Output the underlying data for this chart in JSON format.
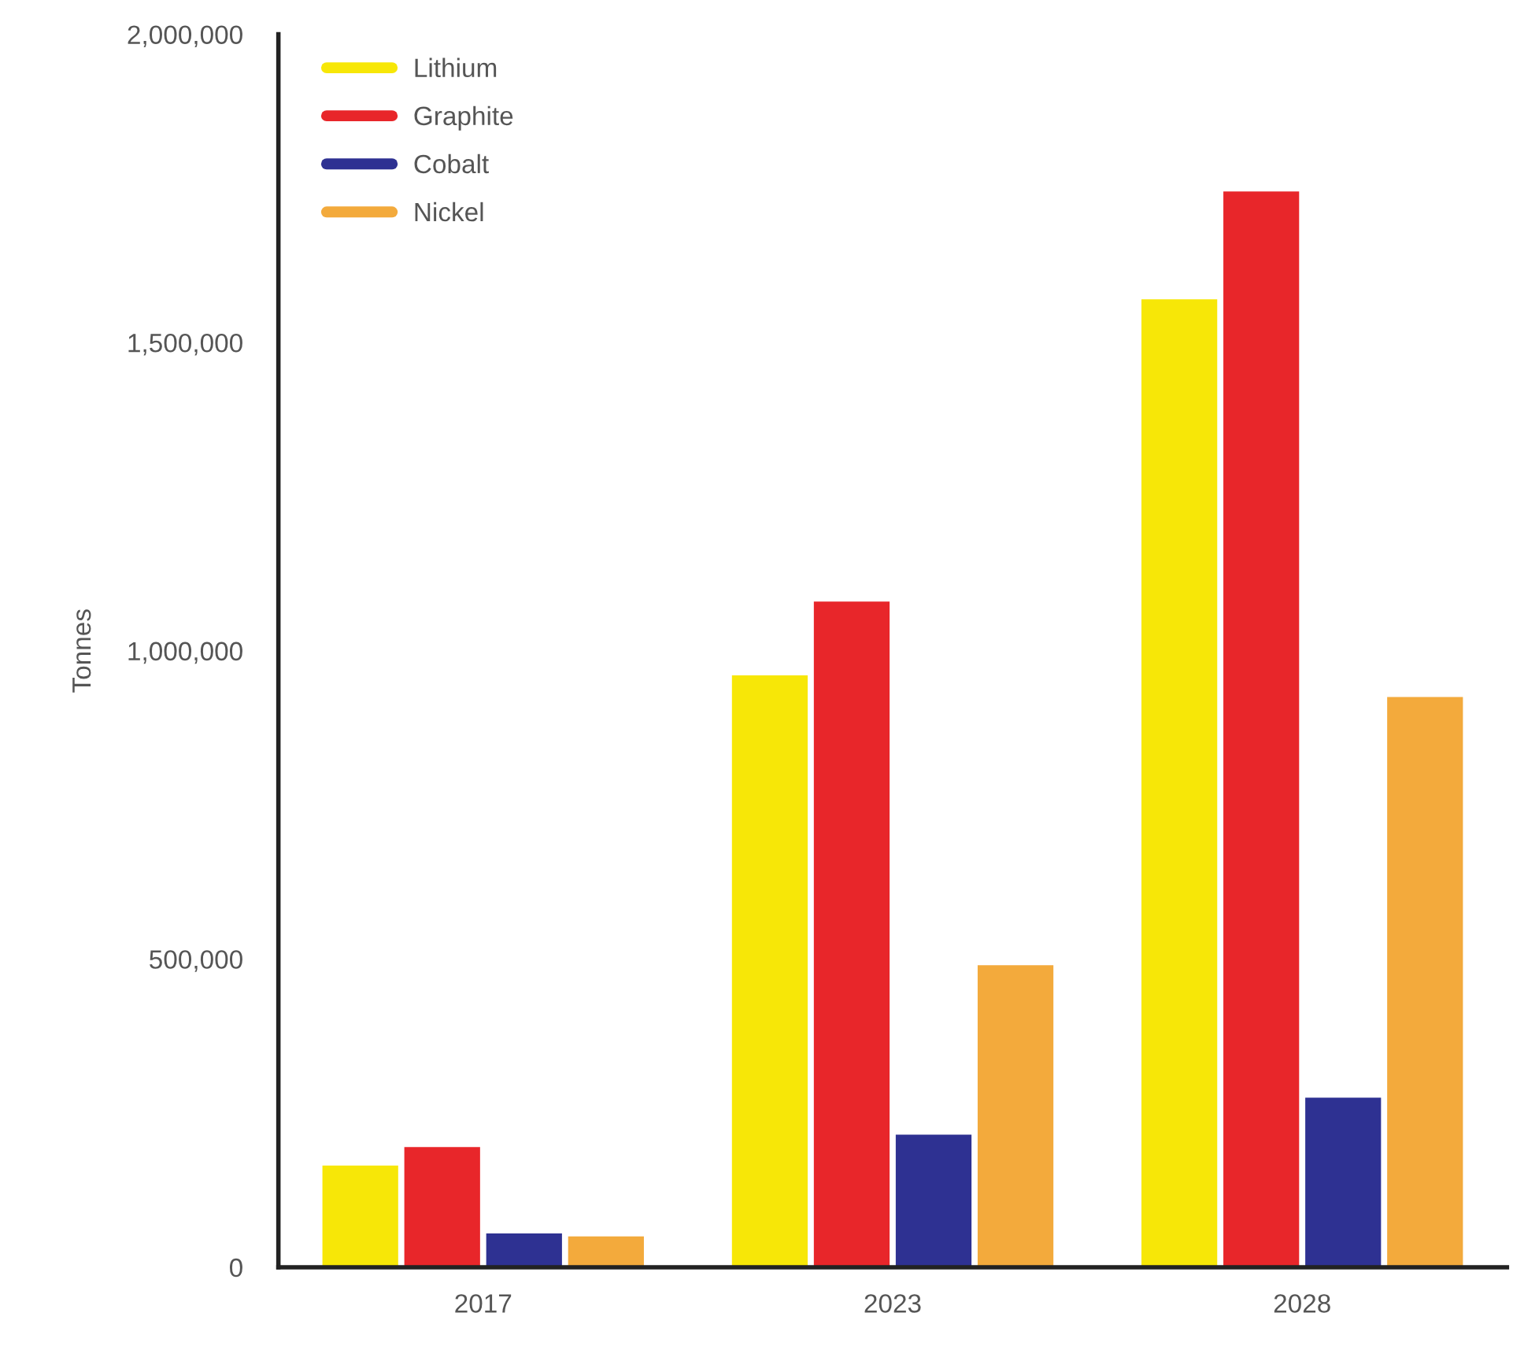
{
  "chart_data": {
    "type": "bar",
    "ylabel": "Tonnes",
    "categories": [
      "2017",
      "2023",
      "2028"
    ],
    "series": [
      {
        "name": "Lithium",
        "color": "#f7e707",
        "values": [
          165000,
          960000,
          1570000
        ]
      },
      {
        "name": "Graphite",
        "color": "#e8262a",
        "values": [
          195000,
          1080000,
          1745000
        ]
      },
      {
        "name": "Cobalt",
        "color": "#2e3192",
        "values": [
          55000,
          215000,
          275000
        ]
      },
      {
        "name": "Nickel",
        "color": "#f3aa3c",
        "values": [
          50000,
          490000,
          925000
        ]
      }
    ],
    "ylim": [
      0,
      2000000
    ],
    "yticks": [
      {
        "value": 0,
        "label": "0"
      },
      {
        "value": 500000,
        "label": "500,000"
      },
      {
        "value": 1000000,
        "label": "1,000,000"
      },
      {
        "value": 1500000,
        "label": "1,500,000"
      },
      {
        "value": 2000000,
        "label": "2,000,000"
      }
    ],
    "grid": false,
    "legend": "top left"
  }
}
